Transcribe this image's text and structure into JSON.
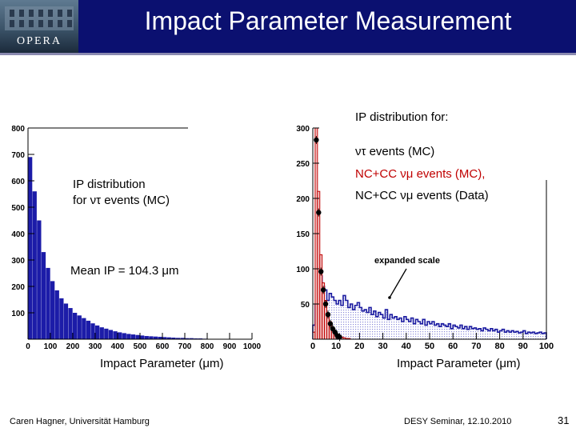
{
  "header": {
    "logo_text": "OPERA",
    "title": "Impact Parameter Measurement"
  },
  "annotations": {
    "ip_for": "IP distribution for:",
    "legend_nutau": "ντ events (MC)",
    "legend_nc_mc": "NC+CC νμ events (MC),",
    "legend_nc_data": "NC+CC νμ events (Data)",
    "expanded": "expanded scale",
    "left_ip_line1": "IP distribution",
    "left_ip_line2": "for ντ events (MC)",
    "mean_ip": "Mean IP = 104.3 μm"
  },
  "chart_data": [
    {
      "type": "bar",
      "xlabel": "Impact Parameter (μm)",
      "xlim": [
        0,
        1000
      ],
      "ylim": [
        0,
        800
      ],
      "xticks": [
        "0",
        "100",
        "200",
        "300",
        "400",
        "500",
        "600",
        "700",
        "800",
        "900",
        "1000"
      ],
      "yticks": [
        "100",
        "200",
        "300",
        "400",
        "500",
        "600",
        "700",
        "800"
      ],
      "bin_width": 20,
      "values": [
        690,
        560,
        450,
        330,
        270,
        220,
        185,
        155,
        135,
        118,
        100,
        90,
        80,
        70,
        60,
        52,
        45,
        40,
        35,
        30,
        26,
        23,
        20,
        18,
        16,
        14,
        12,
        11,
        10,
        9,
        8,
        7,
        6,
        5,
        5,
        4,
        4,
        3,
        3,
        2
      ]
    },
    {
      "type": "bar",
      "xlabel": "Impact Parameter (μm)",
      "xlim": [
        0,
        100
      ],
      "ylim": [
        0,
        300
      ],
      "xticks": [
        "0",
        "10",
        "20",
        "30",
        "40",
        "50",
        "60",
        "70",
        "80",
        "90",
        "100"
      ],
      "yticks": [
        "50",
        "100",
        "150",
        "200",
        "250",
        "300"
      ],
      "bin_width": 1,
      "series": [
        {
          "name": "ντ events (MC)",
          "color": "#1a1aa0",
          "values": [
            20,
            50,
            80,
            90,
            75,
            70,
            55,
            65,
            60,
            55,
            50,
            55,
            48,
            62,
            55,
            45,
            50,
            42,
            48,
            52,
            45,
            40,
            42,
            38,
            45,
            35,
            40,
            32,
            38,
            35,
            30,
            42,
            28,
            35,
            30,
            32,
            28,
            30,
            25,
            32,
            28,
            25,
            30,
            22,
            28,
            25,
            22,
            28,
            20,
            25,
            22,
            25,
            20,
            22,
            18,
            22,
            20,
            18,
            22,
            15,
            20,
            18,
            16,
            20,
            15,
            18,
            14,
            18,
            15,
            16,
            14,
            15,
            12,
            16,
            14,
            12,
            15,
            12,
            14,
            10,
            12,
            14,
            10,
            12,
            10,
            12,
            10,
            11,
            9,
            10,
            12,
            8,
            10,
            9,
            10,
            8,
            9,
            10,
            8,
            9
          ]
        },
        {
          "name": "NC+CC νμ events (MC)",
          "color": "#c00000",
          "values": [
            10,
            300,
            210,
            120,
            80,
            55,
            35,
            25,
            15,
            10,
            6,
            4,
            3,
            2,
            1,
            1,
            0,
            0,
            0,
            0
          ]
        },
        {
          "name": "NC+CC νμ events (Data)",
          "color": "#000000",
          "x": [
            1.5,
            2.5,
            3.5,
            4.5,
            5.5,
            6.5,
            7.5,
            8.5,
            9.5,
            10.5,
            11.5
          ],
          "y": [
            283,
            180,
            96,
            70,
            50,
            35,
            22,
            15,
            10,
            5,
            3
          ]
        }
      ]
    }
  ],
  "footer": {
    "left": "Caren Hagner, Universität Hamburg",
    "mid": "DESY Seminar, 12.10.2010",
    "page": "31"
  }
}
